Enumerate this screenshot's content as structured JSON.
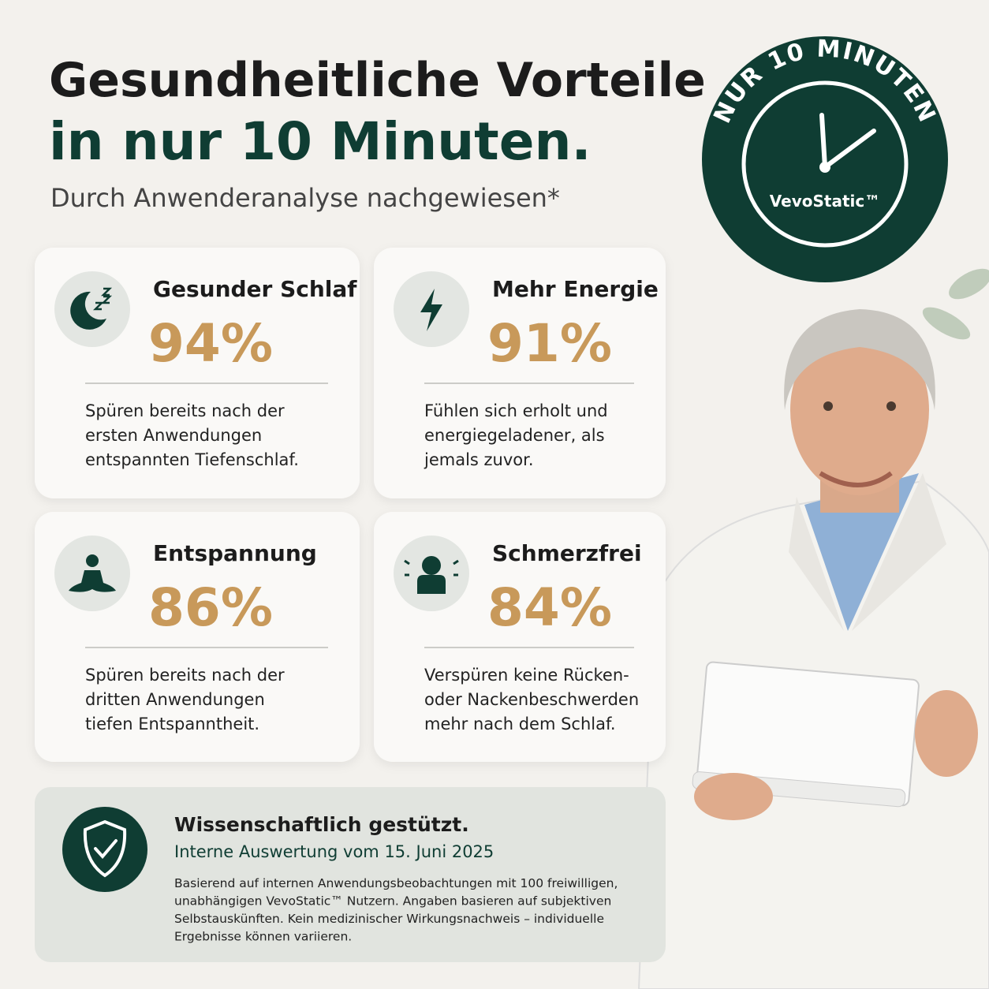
{
  "header": {
    "title_lines": [
      "Gesundheitliche Vorteile",
      "in nur 10 Minuten."
    ],
    "subtitle": "Durch Anwenderanalyse nachgewiesen*"
  },
  "badge": {
    "arc_text": "NUR 10 MINUTEN",
    "brand": "VevoStatic™"
  },
  "cards": [
    {
      "title": "Gesunder Schlaf",
      "percent": "94%",
      "description": [
        "Spüren bereits nach der",
        "ersten Anwendungen",
        "entspannten Tiefenschlaf."
      ]
    },
    {
      "title": "Mehr Energie",
      "percent": "91%",
      "description": [
        "Fühlen sich erholt und",
        "energiegeladener, als",
        "jemals zuvor."
      ]
    },
    {
      "title": "Entspannung",
      "percent": "86%",
      "description": [
        "Spüren bereits nach der",
        "dritten Anwendungen",
        "tiefen Entspanntheit."
      ]
    },
    {
      "title": "Schmerzfrei",
      "percent": "84%",
      "description": [
        "Verspüren keine Rücken-",
        "oder Nackenbeschwerden",
        "mehr nach dem Schlaf."
      ]
    }
  ],
  "footer": {
    "title": "Wissenschaftlich gestützt.",
    "subtitle": "Interne Auswertung vom 15. Juni 2025",
    "body": [
      "Basierend auf internen Anwendungsbeobachtungen mit 100 freiwilligen,",
      "unabhängigen VevoStatic™ Nutzern. Angaben basieren auf subjektiven",
      "Selbstauskünften. Kein medizinischer Wirkungsnachweis – individuelle",
      "Ergebnisse können variieren."
    ]
  }
}
